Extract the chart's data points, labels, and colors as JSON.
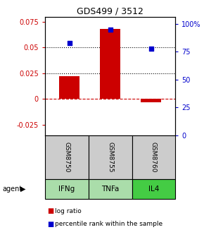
{
  "title": "GDS499 / 3512",
  "samples": [
    "GSM8750",
    "GSM8755",
    "GSM8760"
  ],
  "agents": [
    "IFNg",
    "TNFa",
    "IL4"
  ],
  "log_ratios": [
    0.022,
    0.068,
    -0.003
  ],
  "percentile_ranks": [
    0.83,
    0.95,
    0.78
  ],
  "bar_color": "#cc0000",
  "dot_color": "#0000cc",
  "ylim_left": [
    -0.035,
    0.08
  ],
  "ylim_right": [
    0.0,
    1.0667
  ],
  "yticks_left": [
    -0.025,
    0.0,
    0.025,
    0.05,
    0.075
  ],
  "yticks_right": [
    0.0,
    0.25,
    0.5,
    0.75,
    1.0
  ],
  "ytick_labels_left": [
    "-0.025",
    "0",
    "0.025",
    "0.05",
    "0.075"
  ],
  "ytick_labels_right": [
    "0",
    "25",
    "50",
    "75",
    "100%"
  ],
  "hlines": [
    0.025,
    0.05
  ],
  "left_axis_color": "#cc0000",
  "right_axis_color": "#0000cc",
  "sample_box_color": "#cccccc",
  "agent_colors": [
    "#aaddaa",
    "#aaddaa",
    "#44cc44"
  ],
  "legend_log_color": "#cc0000",
  "legend_dot_color": "#0000cc",
  "bar_width": 0.5,
  "fig_width": 2.9,
  "fig_height": 3.36
}
